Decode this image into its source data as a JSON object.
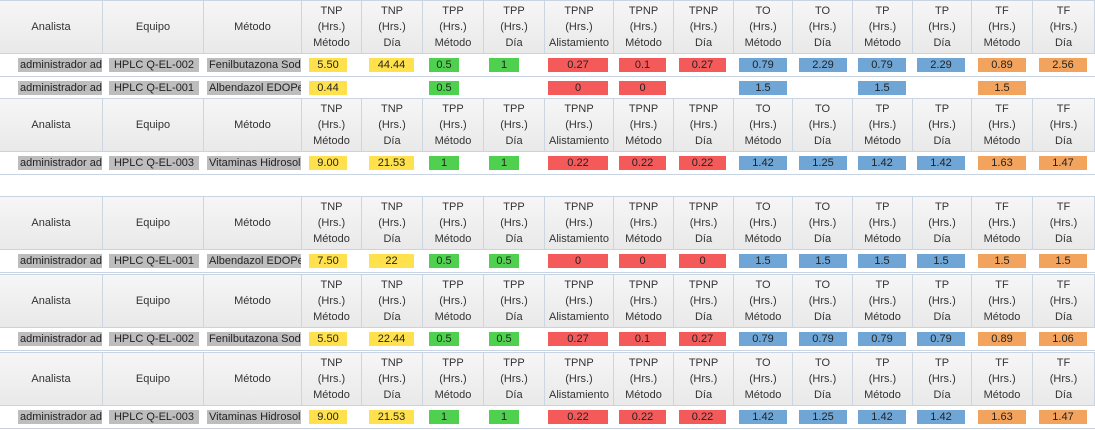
{
  "headers": {
    "analista": "Analista",
    "equipo": "Equipo",
    "metodo": "Método",
    "cols": [
      [
        "TNP",
        "(Hrs.)",
        "Método"
      ],
      [
        "TNP",
        "(Hrs.)",
        "Día"
      ],
      [
        "TPP",
        "(Hrs.)",
        "Método"
      ],
      [
        "TPP",
        "(Hrs.)",
        "Día"
      ],
      [
        "TPNP",
        "(Hrs.)",
        "Alistamiento"
      ],
      [
        "TPNP",
        "(Hrs.)",
        "Método"
      ],
      [
        "TPNP",
        "(Hrs.)",
        "Día"
      ],
      [
        "TO",
        "(Hrs.)",
        "Método"
      ],
      [
        "TO",
        "(Hrs.)",
        "Día"
      ],
      [
        "TP",
        "(Hrs.)",
        "Método"
      ],
      [
        "TP",
        "(Hrs.)",
        "Día"
      ],
      [
        "TF",
        "(Hrs.)",
        "Método"
      ],
      [
        "TF",
        "(Hrs.)",
        "Día"
      ]
    ]
  },
  "blocks": [
    {
      "rows": [
        {
          "analista": "administrador adı",
          "equipo": "HPLC Q-EL-002",
          "metodo": "Fenilbutazona Sodio",
          "values": [
            "5.50",
            "44.44",
            "0.5",
            "1",
            "0.27",
            "0.1",
            "0.27",
            "0.79",
            "2.29",
            "0.79",
            "2.29",
            "0.89",
            "2.56"
          ]
        },
        {
          "analista": "administrador adı",
          "equipo": "HPLC Q-EL-001",
          "metodo": "Albendazol EDOPet",
          "values": [
            "0.44",
            "",
            "0.5",
            "",
            "0",
            "0",
            "",
            "1.5",
            "",
            "1.5",
            "",
            "1.5",
            ""
          ]
        }
      ]
    },
    {
      "rows": [
        {
          "analista": "administrador adı",
          "equipo": "HPLC Q-EL-003",
          "metodo": "Vitaminas Hidrosolu",
          "values": [
            "9.00",
            "21.53",
            "1",
            "1",
            "0.22",
            "0.22",
            "0.22",
            "1.42",
            "1.25",
            "1.42",
            "1.42",
            "1.63",
            "1.47"
          ]
        }
      ]
    },
    {
      "rows": [
        {
          "analista": "administrador adı",
          "equipo": "HPLC Q-EL-001",
          "metodo": "Albendazol EDOPet",
          "values": [
            "7.50",
            "22",
            "0.5",
            "0.5",
            "0",
            "0",
            "0",
            "1.5",
            "1.5",
            "1.5",
            "1.5",
            "1.5",
            "1.5"
          ]
        }
      ]
    },
    {
      "rows": [
        {
          "analista": "administrador adı",
          "equipo": "HPLC Q-EL-002",
          "metodo": "Fenilbutazona Sodio",
          "values": [
            "5.50",
            "22.44",
            "0.5",
            "0.5",
            "0.27",
            "0.1",
            "0.27",
            "0.79",
            "0.79",
            "0.79",
            "0.79",
            "0.89",
            "1.06"
          ]
        }
      ]
    },
    {
      "rows": [
        {
          "analista": "administrador adı",
          "equipo": "HPLC Q-EL-003",
          "metodo": "Vitaminas Hidrosolu",
          "values": [
            "9.00",
            "21.53",
            "1",
            "1",
            "0.22",
            "0.22",
            "0.22",
            "1.42",
            "1.25",
            "1.42",
            "1.42",
            "1.63",
            "1.47"
          ]
        }
      ]
    }
  ],
  "colors": {
    "tnp": "#ffe14d",
    "tpp": "#4fd14f",
    "tpnp": "#f55a5a",
    "to_tp": "#6fa6d6",
    "tf": "#f2a45e",
    "text_cell": "#bdbdbd"
  }
}
